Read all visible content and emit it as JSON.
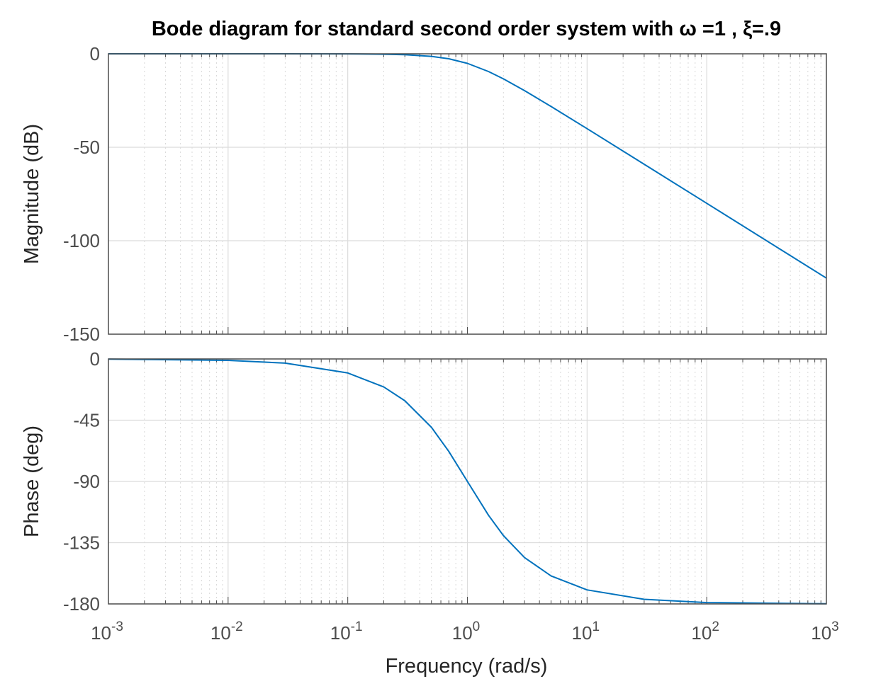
{
  "chart_data": [
    {
      "type": "line",
      "panel": "magnitude",
      "title": "Bode diagram for standard second order system with ω =1 , ξ=.9",
      "xlabel": "Frequency  (rad/s)",
      "ylabel": "Magnitude (dB)",
      "xscale": "log",
      "xlim": [
        0.001,
        1000
      ],
      "ylim": [
        -150,
        0
      ],
      "yticks": [
        0,
        -50,
        -100,
        -150
      ],
      "xticks": [
        -3,
        -2,
        -1,
        0,
        1,
        2,
        3
      ],
      "grid": true,
      "line_color": "#0072bd",
      "x": [
        0.001,
        0.01,
        0.03,
        0.1,
        0.2,
        0.3,
        0.5,
        0.7,
        1,
        1.5,
        2,
        3,
        5,
        10,
        30,
        100,
        1000
      ],
      "y": [
        0,
        -0.0005,
        -0.005,
        -0.054,
        -0.217,
        -0.49,
        -1.375,
        -2.67,
        -5.11,
        -9.47,
        -13.42,
        -19.69,
        -28.18,
        -40.05,
        -59.09,
        -80.0,
        -120.0
      ]
    },
    {
      "type": "line",
      "panel": "phase",
      "xlabel": "Frequency  (rad/s)",
      "ylabel": "Phase (deg)",
      "xscale": "log",
      "xlim": [
        0.001,
        1000
      ],
      "ylim": [
        -180,
        0
      ],
      "yticks": [
        0,
        -45,
        -90,
        -135,
        -180
      ],
      "xticks": [
        -3,
        -2,
        -1,
        0,
        1,
        2,
        3
      ],
      "grid": true,
      "line_color": "#0072bd",
      "x": [
        0.001,
        0.01,
        0.03,
        0.1,
        0.2,
        0.3,
        0.5,
        0.7,
        1,
        1.5,
        2,
        3,
        5,
        10,
        30,
        100,
        1000
      ],
      "y": [
        -0.1,
        -1.03,
        -3.09,
        -10.3,
        -20.6,
        -30.7,
        -50.2,
        -68.0,
        -90.0,
        -114.8,
        -129.8,
        -146.0,
        -159.4,
        -169.7,
        -176.6,
        -179.0,
        -179.9
      ]
    }
  ],
  "tick_base": "10"
}
